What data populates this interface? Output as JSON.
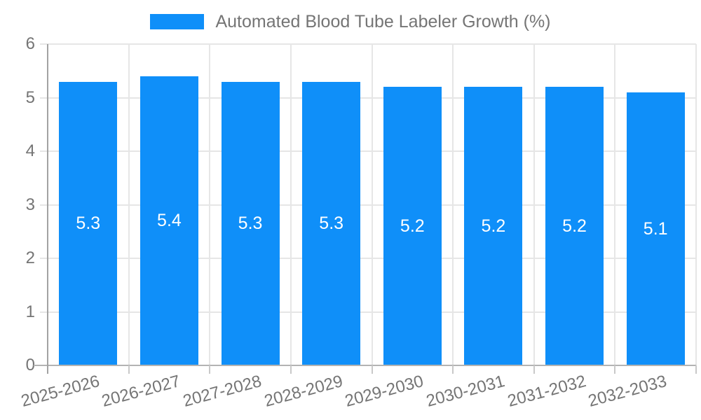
{
  "chart_data": {
    "type": "bar",
    "title": "Automated Blood Tube Labeler Growth (%)",
    "categories": [
      "2025-2026",
      "2026-2027",
      "2027-2028",
      "2028-2029",
      "2029-2030",
      "2030-2031",
      "2031-2032",
      "2032-2033"
    ],
    "values": [
      5.3,
      5.4,
      5.3,
      5.3,
      5.2,
      5.2,
      5.2,
      5.1
    ],
    "bar_labels": [
      "5.3",
      "5.4",
      "5.3",
      "5.3",
      "5.2",
      "5.2",
      "5.2",
      "5.1"
    ],
    "xlabel": "",
    "ylabel": "",
    "ylim": [
      0,
      6
    ],
    "yticks": [
      0,
      1,
      2,
      3,
      4,
      5,
      6
    ],
    "grid": true,
    "legend_position": "top",
    "colors": {
      "bar": "#0f8ff9",
      "bar_label": "#ffffff",
      "axis_text": "#757575",
      "grid": "#e6e6e6",
      "axis_line": "#a2a2a2",
      "baseline": "#b3b3b3",
      "tick": "#c9c9c9",
      "background": "#ffffff"
    }
  }
}
